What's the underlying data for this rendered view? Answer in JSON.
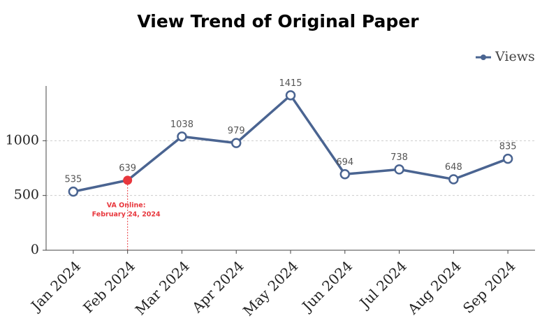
{
  "chart_data": {
    "type": "line",
    "title": "View Trend of Original Paper",
    "categories": [
      "Jan 2024",
      "Feb 2024",
      "Mar 2024",
      "Apr 2024",
      "May 2024",
      "Jun 2024",
      "Jul 2024",
      "Aug 2024",
      "Sep 2024"
    ],
    "series": [
      {
        "name": "Views",
        "color": "#4a6491",
        "values": [
          535,
          639,
          1038,
          979,
          1415,
          694,
          738,
          648,
          835
        ]
      }
    ],
    "ylim": [
      0,
      1500
    ],
    "yticks": [
      0,
      500,
      1000
    ],
    "grid": true,
    "legend": "top-right",
    "annotations": [
      {
        "x": "Feb 2024",
        "color": "#e8373d",
        "lines": [
          "VA  Online:",
          "February 24, 2024"
        ]
      }
    ]
  }
}
